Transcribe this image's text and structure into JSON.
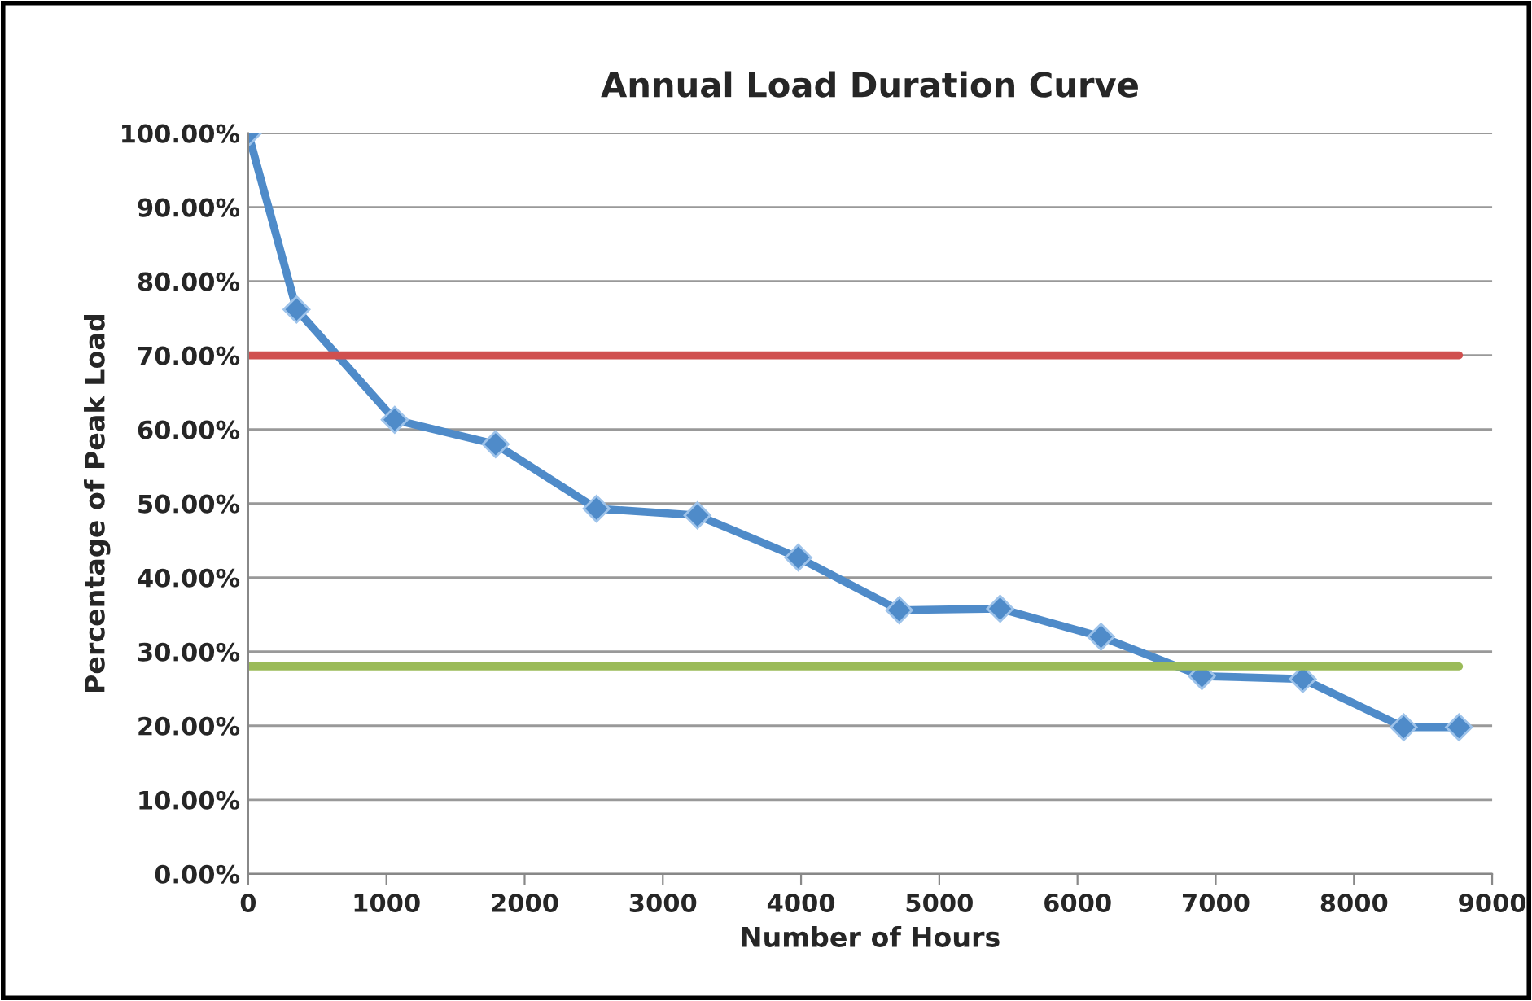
{
  "chart_data": {
    "type": "line",
    "title": "Annual Load Duration Curve",
    "xlabel": "Number of Hours",
    "ylabel": "Percentage of Peak Load",
    "series": [
      {
        "color": "#4f8bc9",
        "marker": "diamond",
        "x": [
          0,
          350,
          1060,
          1790,
          2520,
          3250,
          3980,
          4710,
          5440,
          6170,
          6900,
          7630,
          8360,
          8760
        ],
        "values": [
          100,
          76.2,
          61.3,
          58,
          49.3,
          48.4,
          42.7,
          35.6,
          35.8,
          32,
          26.7,
          26.3,
          19.8,
          19.8
        ]
      },
      {
        "color": "#d0504f",
        "marker": "none",
        "x": [
          0,
          8760
        ],
        "values": [
          70,
          70
        ]
      },
      {
        "color": "#9bbb59",
        "marker": "none",
        "x": [
          0,
          8760
        ],
        "values": [
          28,
          28
        ]
      }
    ],
    "xlim": [
      0,
      9000
    ],
    "xticks": [
      0,
      1000,
      2000,
      3000,
      4000,
      5000,
      6000,
      7000,
      8000,
      9000
    ],
    "ylim": [
      0,
      100
    ],
    "yticks": [
      {
        "value": 0,
        "label": "0.00%"
      },
      {
        "value": 10,
        "label": "10.00%"
      },
      {
        "value": 20,
        "label": "20.00%"
      },
      {
        "value": 30,
        "label": "30.00%"
      },
      {
        "value": 40,
        "label": "40.00%"
      },
      {
        "value": 50,
        "label": "50.00%"
      },
      {
        "value": 60,
        "label": "60.00%"
      },
      {
        "value": 70,
        "label": "70.00%"
      },
      {
        "value": 80,
        "label": "80.00%"
      },
      {
        "value": 90,
        "label": "90.00%"
      },
      {
        "value": 100,
        "label": "100.00%"
      }
    ],
    "grid": "y",
    "line_style": "solid",
    "legend": false
  }
}
